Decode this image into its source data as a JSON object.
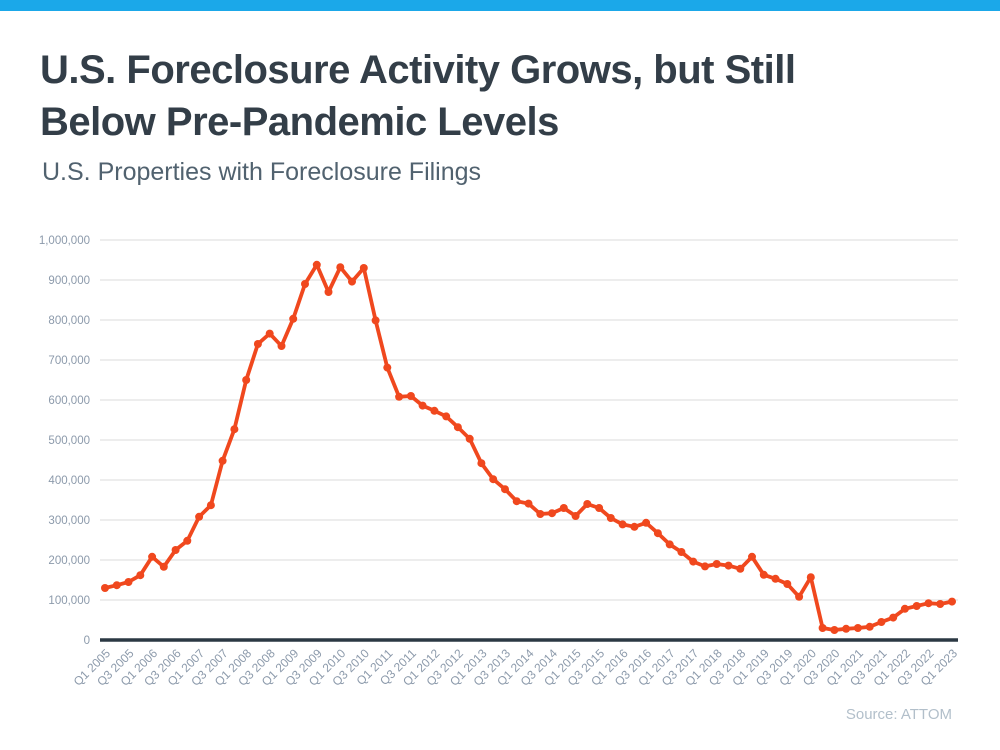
{
  "header": {
    "title_line1": "U.S. Foreclosure Activity Grows, but Still",
    "title_line2": "Below Pre-Pandemic Levels",
    "subtitle": "U.S. Properties with Foreclosure Filings"
  },
  "footer": {
    "source": "Source: ATTOM"
  },
  "colors": {
    "topbar_blue": "#1BA8E9",
    "line_orange": "#F0481E",
    "gridline_gray": "#DBDBDB",
    "axis_dark": "#2B3843",
    "axis_label_gray": "#8C9AAB",
    "title_dark": "#333E48",
    "subtitle_slate": "#51626F",
    "source_gray": "#B2BFCA"
  },
  "chart_data": {
    "type": "line",
    "title": "U.S. Foreclosure Activity Grows, but Still Below Pre-Pandemic Levels",
    "subtitle": "U.S. Properties with Foreclosure Filings",
    "xlabel": "",
    "ylabel": "",
    "ylim": [
      0,
      1000000
    ],
    "y_ticks": [
      0,
      100000,
      200000,
      300000,
      400000,
      500000,
      600000,
      700000,
      800000,
      900000,
      1000000
    ],
    "grid": "horizontal",
    "legend": "none",
    "x_tick_interval": 2,
    "x": [
      "Q1 2005",
      "Q2 2005",
      "Q3 2005",
      "Q4 2005",
      "Q1 2006",
      "Q2 2006",
      "Q3 2006",
      "Q4 2006",
      "Q1 2007",
      "Q2 2007",
      "Q3 2007",
      "Q4 2007",
      "Q1 2008",
      "Q2 2008",
      "Q3 2008",
      "Q4 2008",
      "Q1 2009",
      "Q2 2009",
      "Q3 2009",
      "Q4 2009",
      "Q1 2010",
      "Q2 2010",
      "Q3 2010",
      "Q4 2010",
      "Q1 2011",
      "Q2 2011",
      "Q3 2011",
      "Q4 2011",
      "Q1 2012",
      "Q2 2012",
      "Q3 2012",
      "Q4 2012",
      "Q1 2013",
      "Q2 2013",
      "Q3 2013",
      "Q4 2013",
      "Q1 2014",
      "Q2 2014",
      "Q3 2014",
      "Q4 2014",
      "Q1 2015",
      "Q2 2015",
      "Q3 2015",
      "Q4 2015",
      "Q1 2016",
      "Q2 2016",
      "Q3 2016",
      "Q4 2016",
      "Q1 2017",
      "Q2 2017",
      "Q3 2017",
      "Q4 2017",
      "Q1 2018",
      "Q2 2018",
      "Q3 2018",
      "Q4 2018",
      "Q1 2019",
      "Q2 2019",
      "Q3 2019",
      "Q4 2019",
      "Q1 2020",
      "Q2 2020",
      "Q3 2020",
      "Q4 2020",
      "Q1 2021",
      "Q2 2021",
      "Q3 2021",
      "Q4 2021",
      "Q1 2022",
      "Q2 2022",
      "Q3 2022",
      "Q4 2022",
      "Q1 2023"
    ],
    "values": [
      130000,
      137000,
      145000,
      162000,
      208000,
      183000,
      225000,
      248000,
      308000,
      337000,
      448000,
      527000,
      650000,
      740000,
      766000,
      735000,
      803000,
      890000,
      938000,
      870000,
      932000,
      896000,
      930000,
      799000,
      681000,
      608000,
      610000,
      586000,
      573000,
      559000,
      532000,
      503000,
      442000,
      402000,
      377000,
      347000,
      341000,
      315000,
      317000,
      330000,
      310000,
      340000,
      330000,
      305000,
      289000,
      283000,
      293000,
      267000,
      239000,
      220000,
      196000,
      184000,
      190000,
      186000,
      178000,
      208000,
      163000,
      153000,
      140000,
      108000,
      157000,
      30000,
      25000,
      28000,
      30000,
      33000,
      45000,
      56000,
      78000,
      85000,
      92000,
      90000,
      96000
    ]
  }
}
